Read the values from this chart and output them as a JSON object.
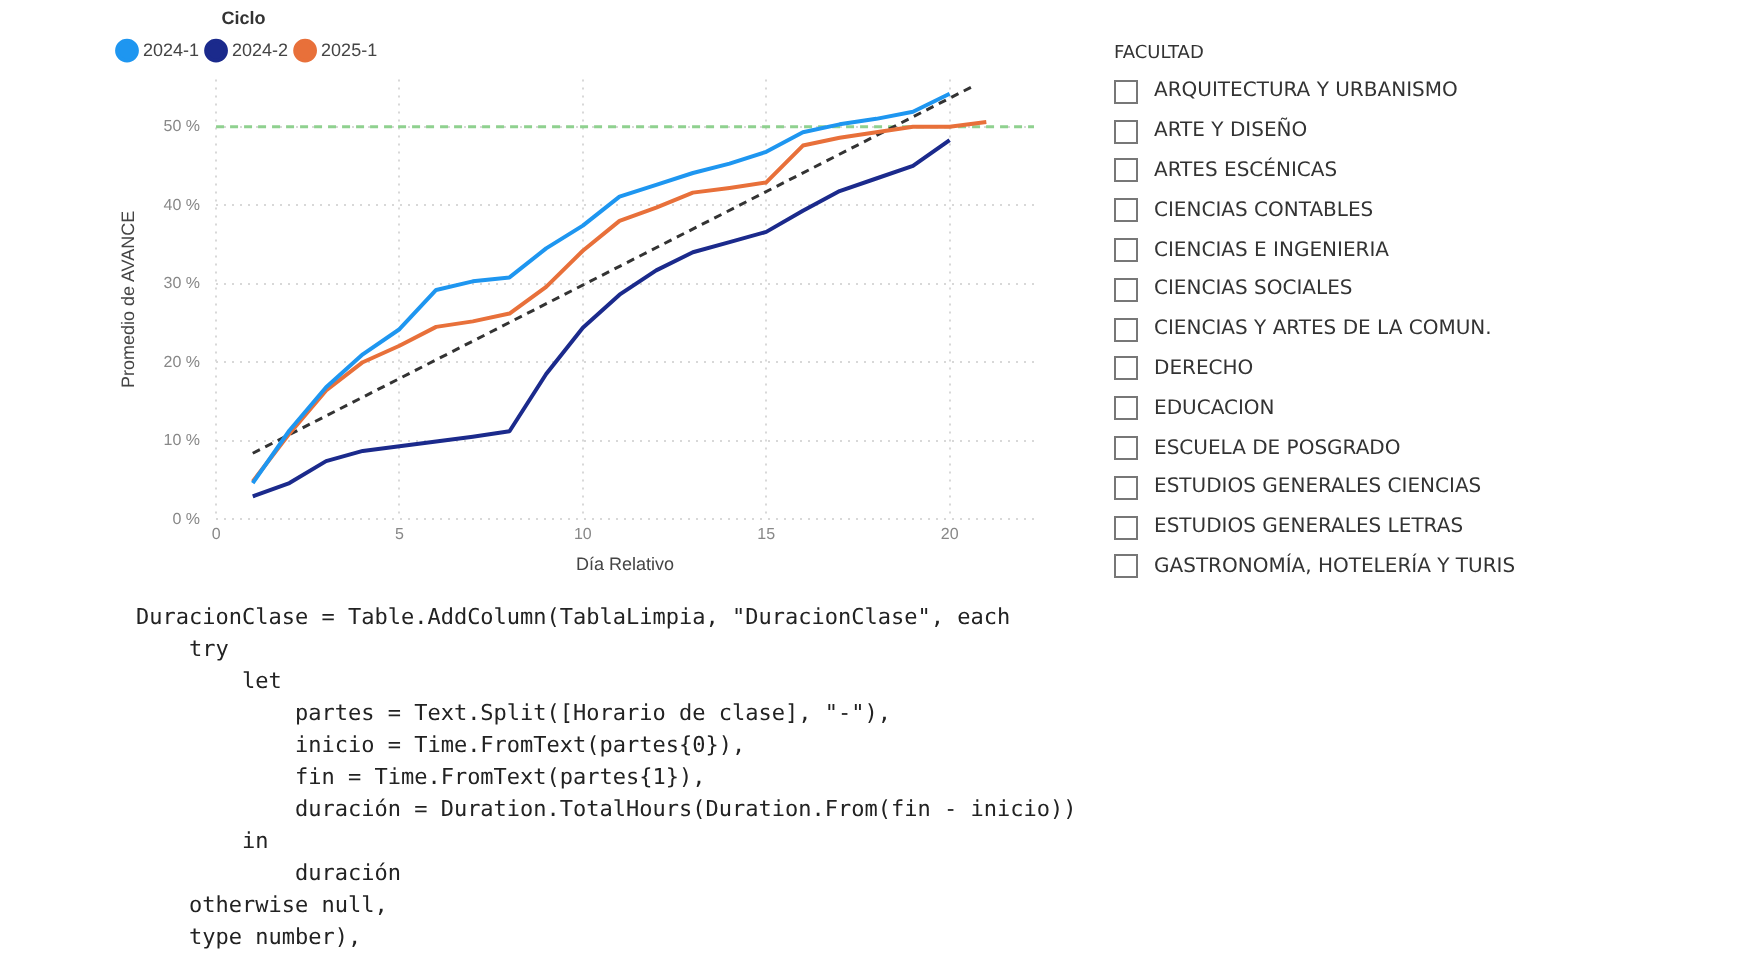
{
  "chart_data": {
    "type": "line",
    "xlabel": "Día Relativo",
    "ylabel": "Promedio de AVANCE",
    "legend_title": "Ciclo",
    "legend": "top left",
    "grid": true,
    "marker": "none",
    "xlim": [
      0,
      22.3
    ],
    "xticks": [
      0,
      5,
      10,
      15,
      20
    ],
    "ylim": [
      0,
      56
    ],
    "yticks": [
      {
        "value": 0,
        "label": "0 %"
      },
      {
        "value": 10,
        "label": "10 %"
      },
      {
        "value": 20,
        "label": "20 %"
      },
      {
        "value": 30,
        "label": "30 %"
      },
      {
        "value": 40,
        "label": "40 %"
      },
      {
        "value": 50,
        "label": "50 %"
      }
    ],
    "x": [
      1,
      2,
      3,
      4,
      5,
      6,
      7,
      8,
      9,
      10,
      11,
      12,
      13,
      14,
      15,
      16,
      17,
      18,
      19,
      20,
      21
    ],
    "series": [
      {
        "name": "2024-1",
        "color": "#1e96f0",
        "values": [
          4.6,
          11.3,
          16.8,
          21,
          24.2,
          29.2,
          30.3,
          30.8,
          34.5,
          37.4,
          41.1,
          42.6,
          44.1,
          45.3,
          46.8,
          49.3,
          50.3,
          51,
          51.9,
          54.2,
          null
        ]
      },
      {
        "name": "2024-2",
        "color": "#1b2a8c",
        "values": [
          2.9,
          4.6,
          7.4,
          8.7,
          9.3,
          9.9,
          10.5,
          11.2,
          18.5,
          24.4,
          28.6,
          31.7,
          34,
          35.3,
          36.6,
          39.3,
          41.8,
          43.4,
          45,
          48.3,
          null
        ]
      },
      {
        "name": "2025-1",
        "color": "#e8703a",
        "values": [
          4.8,
          10.9,
          16.4,
          20,
          22.1,
          24.5,
          25.2,
          26.2,
          29.6,
          34.2,
          38,
          39.7,
          41.6,
          42.2,
          42.9,
          47.6,
          48.6,
          49.3,
          50,
          50,
          50.6
        ]
      },
      {
        "color": "#333333",
        "line_style": "dashed",
        "x": [
          1,
          20.7
        ],
        "values": [
          8.4,
          55.3
        ]
      }
    ],
    "ref_lines": [
      {
        "axis": "y",
        "value": 50,
        "color": "#8fd18f",
        "line_style": "dashed"
      }
    ],
    "annotations": [
      "FACULTAD",
      "ARQUITECTURA Y URBANISMO",
      "ARTE Y DISEÑO",
      "ARTES ESCÉNICAS",
      "CIENCIAS CONTABLES",
      "CIENCIAS E INGENIERIA",
      "CIENCIAS SOCIALES",
      "CIENCIAS Y ARTES DE LA COMUN.",
      "DERECHO",
      "EDUCACION",
      "ESCUELA DE POSGRADO",
      "ESTUDIOS GENERALES CIENCIAS",
      "ESTUDIOS GENERALES LETRAS",
      "GASTRONOMÍA, HOTELERÍA Y TURIS",
      "DuracionClase = Table.AddColumn(TablaLimpia, \"DuracionClase\", each",
      "    try",
      "        let",
      "            partes = Text.Split([Horario de clase], \"-\"),",
      "            inicio = Time.FromText(partes{0}),",
      "            fin = Time.FromText(partes{1}),",
      "            duración = Duration.TotalHours(Duration.From(fin - inicio))",
      "        in",
      "            duración",
      "    otherwise null,",
      "    type number),"
    ]
  }
}
